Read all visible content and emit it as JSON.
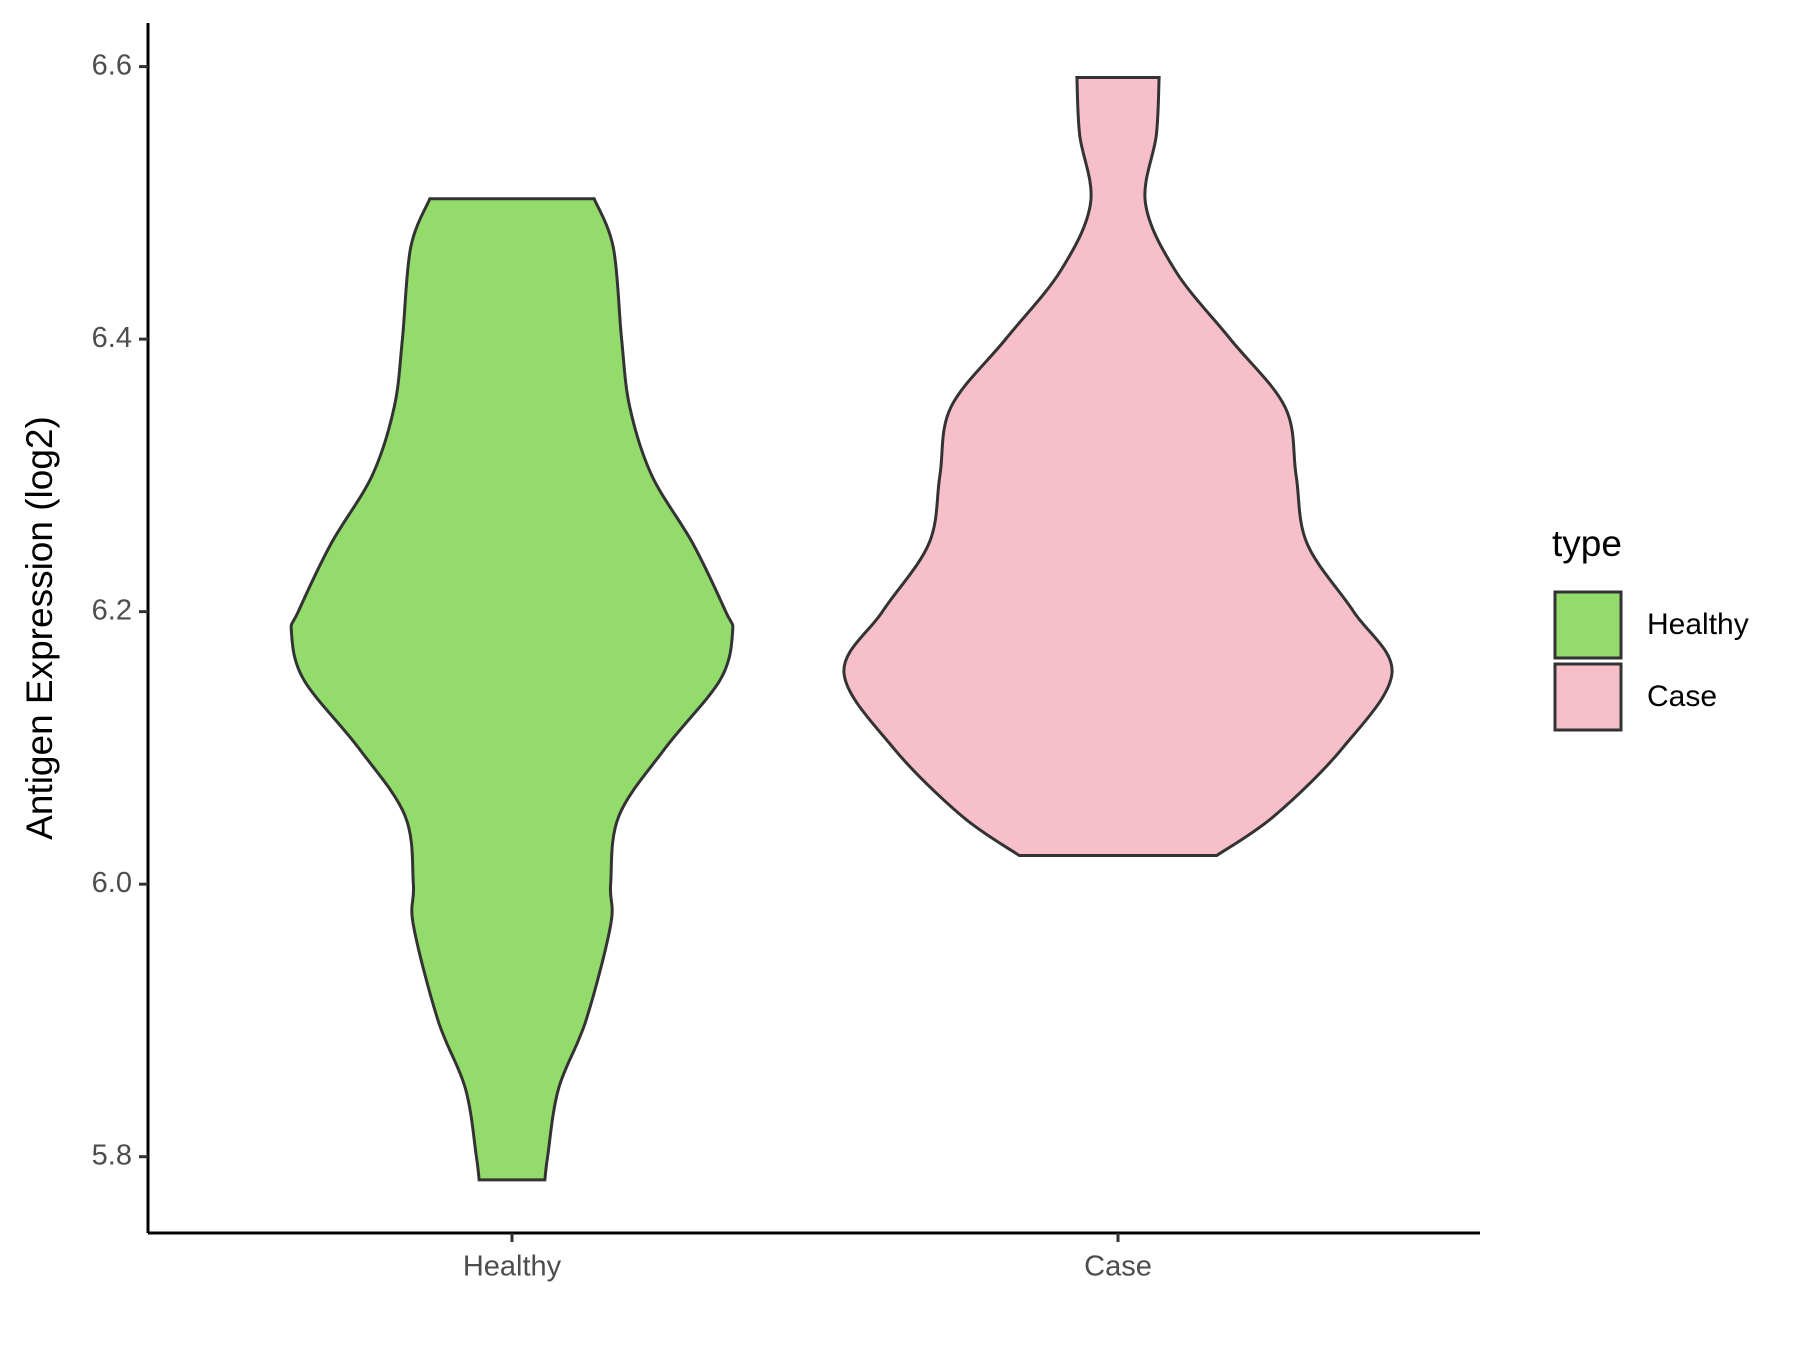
{
  "chart_data": {
    "type": "violin",
    "y_label": "Antigen Expression (log2)",
    "categories": [
      "Healthy",
      "Case"
    ],
    "legend_title": "type",
    "ylim": [
      5.744,
      6.632
    ],
    "yticks": [
      {
        "value": 5.8,
        "label": "5.8"
      },
      {
        "value": 6.0,
        "label": "6.0"
      },
      {
        "value": 6.2,
        "label": "6.2"
      },
      {
        "value": 6.4,
        "label": "6.4"
      },
      {
        "value": 6.6,
        "label": "6.6"
      }
    ],
    "series": [
      {
        "name": "Healthy",
        "color": "#93dc6b",
        "y": [
          5.783,
          5.8,
          5.85,
          5.9,
          5.97,
          6.0,
          6.05,
          6.1,
          6.15,
          6.185,
          6.2,
          6.25,
          6.3,
          6.35,
          6.4,
          6.467,
          6.503
        ],
        "density": [
          0.12,
          0.13,
          0.17,
          0.27,
          0.36,
          0.36,
          0.39,
          0.56,
          0.76,
          0.805,
          0.78,
          0.66,
          0.51,
          0.43,
          0.4,
          0.37,
          0.3
        ]
      },
      {
        "name": "Case",
        "color": "#f7bfca",
        "y": [
          6.021,
          6.05,
          6.1,
          6.155,
          6.2,
          6.25,
          6.3,
          6.35,
          6.4,
          6.45,
          6.5,
          6.55,
          6.592
        ],
        "density": [
          0.36,
          0.57,
          0.82,
          1,
          0.86,
          0.69,
          0.65,
          0.61,
          0.41,
          0.21,
          0.1,
          0.14,
          0.15
        ]
      }
    ]
  }
}
